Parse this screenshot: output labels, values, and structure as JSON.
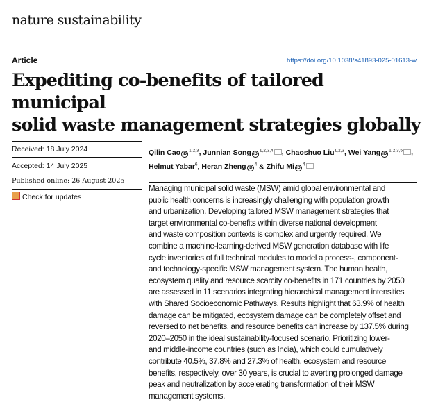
{
  "journal": "nature sustainability",
  "article_type": "Article",
  "doi": "https://doi.org/10.1038/s41893-025-01613-w",
  "title_lines": [
    "Expediting co-benefits of tailored municipal",
    "solid waste management strategies globally"
  ],
  "received": "Received: 18 July 2024",
  "accepted": "Accepted: 14 July 2025",
  "published": "Published online: 26 August 2025",
  "check_updates": "Check for updates",
  "authors": [
    {
      "name": "Qilin Cao",
      "aff": "1,2,3",
      "orcid": true,
      "email": false
    },
    {
      "name": "Junnian Song",
      "aff": "1,2,3,4",
      "orcid": true,
      "email": true
    },
    {
      "name": "Chaoshuo Liu",
      "aff": "1,2,3",
      "orcid": false,
      "email": false
    },
    {
      "name": "Wei Yang",
      "aff": "1,2,3,5",
      "orcid": true,
      "email": true
    },
    {
      "name": "Helmut Yabar",
      "aff": "6",
      "orcid": false,
      "email": false
    },
    {
      "name": "Heran Zheng",
      "aff": "4",
      "orcid": true,
      "email": false
    },
    {
      "name": "Zhifu Mi",
      "aff": "4",
      "orcid": true,
      "email": true
    }
  ],
  "abstract_lines": [
    "Managing municipal solid waste (MSW) amid global environmental and",
    "public health concerns is increasingly challenging with population growth",
    "and urbanization. Developing tailored MSW management strategies that",
    "target environmental co-benefits within diverse national development",
    "and waste composition contexts is complex and urgently required. We",
    "combine a machine-learning-derived MSW generation database with life",
    "cycle inventories of full technical modules to model a process-, component-",
    "and technology-specific MSW management system. The human health,",
    "ecosystem quality and resource scarcity co-benefits in 171 countries by 2050",
    "are assessed in 11 scenarios integrating hierarchical management intensities",
    "with Shared Socioeconomic Pathways. Results highlight that 63.9% of health",
    "damage can be mitigated, ecosystem damage can be completely offset and",
    "reversed to net benefits, and resource benefits can increase by 137.5% during",
    "2020–2050 in the ideal sustainability-focused scenario. Prioritizing lower-",
    "and middle-income countries (such as India), which could cumulatively",
    "contribute 40.5%, 37.8% and 27.3% of health, ecosystem and resource",
    "benefits, respectively, over 30 years, is crucial to averting prolonged damage",
    "peak and neutralization by accelerating transformation of their MSW",
    "management systems."
  ],
  "colors": {
    "link": "#1a5fb4"
  }
}
